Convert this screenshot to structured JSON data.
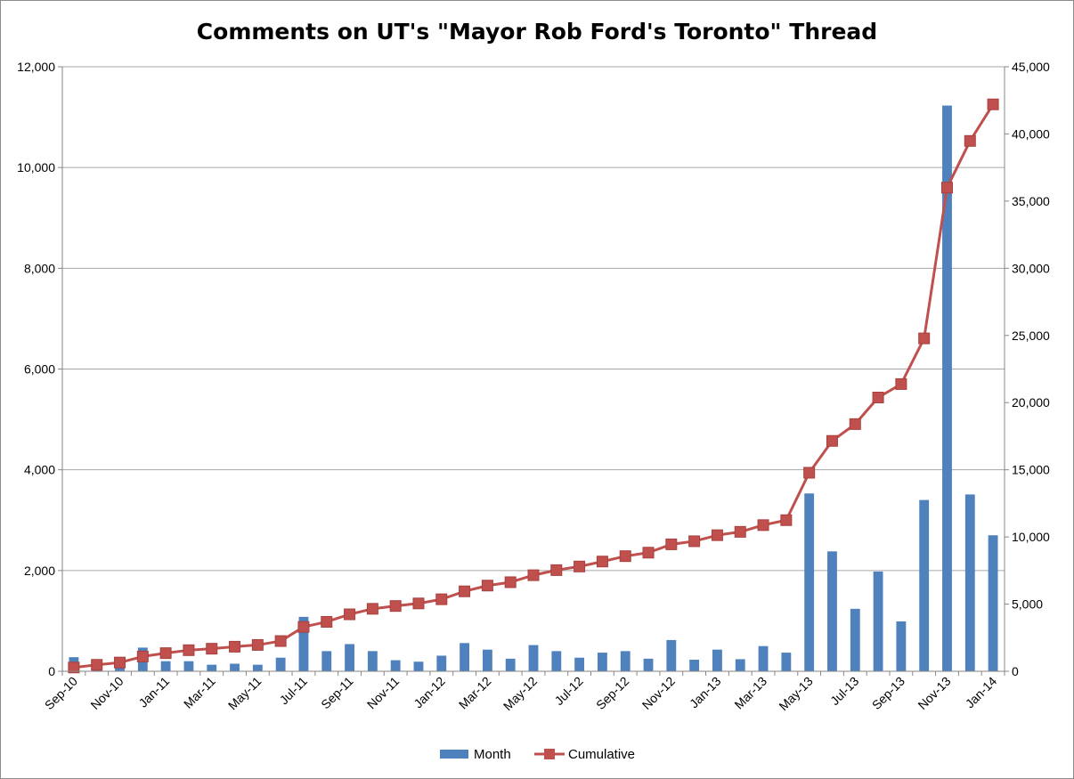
{
  "chart_data": {
    "type": "bar+line",
    "title": "Comments on UT's \"Mayor Rob Ford's Toronto\" Thread",
    "categories": [
      "Sep-10",
      "Oct-10",
      "Nov-10",
      "Dec-10",
      "Jan-11",
      "Feb-11",
      "Mar-11",
      "Apr-11",
      "May-11",
      "Jun-11",
      "Jul-11",
      "Aug-11",
      "Sep-11",
      "Oct-11",
      "Nov-11",
      "Dec-11",
      "Jan-12",
      "Feb-12",
      "Mar-12",
      "Apr-12",
      "May-12",
      "Jun-12",
      "Jul-12",
      "Aug-12",
      "Sep-12",
      "Oct-12",
      "Nov-12",
      "Dec-12",
      "Jan-13",
      "Feb-13",
      "Mar-13",
      "Apr-13",
      "May-13",
      "Jun-13",
      "Jul-13",
      "Aug-13",
      "Sep-13",
      "Oct-13",
      "Nov-13",
      "Dec-13",
      "Jan-14"
    ],
    "x_tick_labels": [
      "Sep-10",
      "Nov-10",
      "Jan-11",
      "Mar-11",
      "May-11",
      "Jul-11",
      "Sep-11",
      "Nov-11",
      "Jan-12",
      "Mar-12",
      "May-12",
      "Jul-12",
      "Sep-12",
      "Nov-12",
      "Jan-13",
      "Mar-13",
      "May-13",
      "Jul-13",
      "Sep-13",
      "Nov-13",
      "Jan-14"
    ],
    "y_left": {
      "min": 0,
      "max": 12000,
      "ticks": [
        "0",
        "2,000",
        "4,000",
        "6,000",
        "8,000",
        "10,000",
        "12,000"
      ]
    },
    "y_right": {
      "min": 0,
      "max": 45000,
      "ticks": [
        "0",
        "5,000",
        "10,000",
        "15,000",
        "20,000",
        "25,000",
        "30,000",
        "35,000",
        "40,000",
        "45,000"
      ]
    },
    "grid": true,
    "legend_position": "bottom",
    "series": [
      {
        "name": "Month",
        "type": "bar",
        "axis": "left",
        "color": "#4F81BD",
        "values": [
          280,
          180,
          120,
          470,
          200,
          200,
          130,
          150,
          130,
          270,
          1080,
          400,
          540,
          400,
          220,
          190,
          310,
          560,
          430,
          250,
          520,
          400,
          270,
          370,
          400,
          250,
          620,
          230,
          430,
          240,
          500,
          370,
          3530,
          2380,
          1240,
          1980,
          990,
          3400,
          11230,
          3510,
          2700
        ]
      },
      {
        "name": "Cumulative",
        "type": "line",
        "axis": "right",
        "color": "#C0504D",
        "values": [
          280,
          480,
          650,
          1100,
          1350,
          1570,
          1680,
          1830,
          1960,
          2250,
          3300,
          3680,
          4240,
          4650,
          4860,
          5050,
          5360,
          5950,
          6380,
          6630,
          7150,
          7530,
          7800,
          8170,
          8570,
          8830,
          9450,
          9680,
          10130,
          10380,
          10880,
          11250,
          14780,
          17150,
          18400,
          20380,
          21380,
          24780,
          36000,
          39480,
          42200
        ]
      }
    ]
  }
}
